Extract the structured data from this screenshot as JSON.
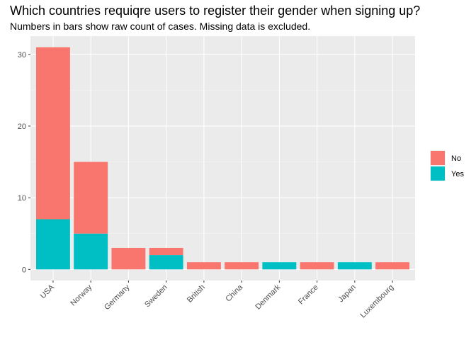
{
  "chart_data": {
    "type": "bar",
    "stacked": true,
    "title": "Which countries requiqre users to register their gender when signing up?",
    "subtitle": "Numbers in bars show raw count of cases. Missing data is excluded.",
    "xlabel": "",
    "ylabel": "",
    "categories": [
      "USA",
      "Norway",
      "Germany",
      "Sweden",
      "British",
      "China",
      "Denmark",
      "France",
      "Japan",
      "Luxembourg"
    ],
    "series": [
      {
        "name": "No",
        "color": "#F8766D",
        "values": [
          24,
          10,
          3,
          1,
          1,
          1,
          0,
          1,
          0,
          1
        ]
      },
      {
        "name": "Yes",
        "color": "#00BFC4",
        "values": [
          7,
          5,
          0,
          2,
          0,
          0,
          1,
          0,
          1,
          0
        ]
      }
    ],
    "ylim": [
      -1.55,
      32.55
    ],
    "yticks": [
      "0",
      "10",
      "20",
      "30"
    ],
    "grid": true,
    "legend": "right",
    "colors": {
      "panel_background": "#EBEBEB",
      "grid_major": "#FFFFFF",
      "grid_minor": "#F5F5F5"
    }
  }
}
